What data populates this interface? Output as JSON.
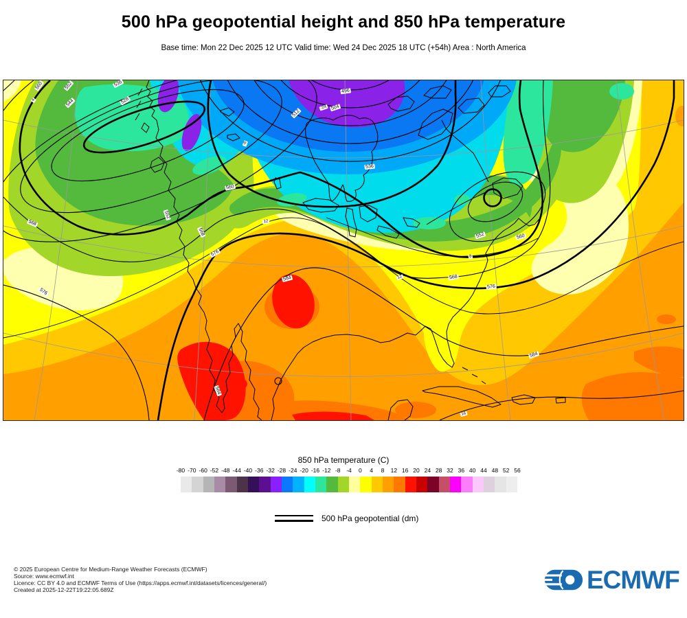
{
  "header": {
    "title": "500 hPa geopotential height and 850 hPa temperature",
    "subtitle": "Base time: Mon 22 Dec 2025 12 UTC Valid time: Wed 24 Dec 2025 18 UTC (+54h) Area : North America"
  },
  "colorbar": {
    "title": "850 hPa temperature (C)",
    "ticks": [
      "-80",
      "-70",
      "-60",
      "-52",
      "-48",
      "-44",
      "-40",
      "-36",
      "-32",
      "-28",
      "-24",
      "-20",
      "-16",
      "-12",
      "-8",
      "-4",
      "0",
      "4",
      "8",
      "12",
      "16",
      "20",
      "24",
      "28",
      "32",
      "36",
      "40",
      "44",
      "48",
      "52",
      "56"
    ],
    "colors": [
      "#e9e9e9",
      "#d4d4d4",
      "#b5b5b5",
      "#a78ba7",
      "#7c5a74",
      "#4d3349",
      "#331058",
      "#5c0f91",
      "#8a1fff",
      "#0a78ff",
      "#00b2ff",
      "#00ffff",
      "#2de69d",
      "#53ba3d",
      "#a2d628",
      "#ffff9e",
      "#ffff00",
      "#ffc800",
      "#ffa000",
      "#ff7800",
      "#ff1200",
      "#c80000",
      "#7c0228",
      "#c44f66",
      "#fb00fb",
      "#fb7dfb",
      "#fbc8fb",
      "#ddd1dd",
      "#e5e5e5",
      "#eeeeee"
    ]
  },
  "line_legend": {
    "label": "500 hPa geopotential (dm)"
  },
  "map": {
    "labels": [
      [
        "560",
        52,
        8,
        -55,
        "h"
      ],
      [
        "552",
        95,
        8,
        -50,
        "h"
      ],
      [
        "544",
        97,
        33,
        -45,
        "h"
      ],
      [
        "536",
        167,
        5,
        -28,
        "h"
      ],
      [
        "528",
        177,
        30,
        -33,
        "h"
      ],
      [
        "4",
        44,
        29,
        -55,
        "t"
      ],
      [
        "552",
        238,
        196,
        72,
        "h"
      ],
      [
        "568",
        288,
        221,
        64,
        "h"
      ],
      [
        "560",
        330,
        156,
        -12,
        "h"
      ],
      [
        "576",
        308,
        252,
        -30,
        "h"
      ],
      [
        "584",
        413,
        289,
        -14,
        "h"
      ],
      [
        "496",
        498,
        16,
        -8,
        "h"
      ],
      [
        "504",
        483,
        40,
        -18,
        "h"
      ],
      [
        "512",
        426,
        48,
        -45,
        "h"
      ],
      [
        "-24",
        466,
        40,
        -18,
        "t"
      ],
      [
        "536",
        533,
        126,
        -6,
        "h"
      ],
      [
        "-8",
        352,
        92,
        -70,
        "t"
      ],
      [
        "12",
        382,
        206,
        -4,
        "t"
      ],
      [
        "12",
        577,
        287,
        -20,
        "t"
      ],
      [
        "8",
        680,
        257,
        -12,
        "t"
      ],
      [
        "552",
        694,
        226,
        -18,
        "h"
      ],
      [
        "560",
        753,
        228,
        -15,
        "h"
      ],
      [
        "568",
        655,
        287,
        -10,
        "h"
      ],
      [
        "576",
        710,
        301,
        -6,
        "h"
      ],
      [
        "584",
        772,
        400,
        -18,
        "h"
      ],
      [
        "16",
        670,
        486,
        -15,
        "t"
      ],
      [
        "568",
        42,
        208,
        22,
        "h"
      ],
      [
        "576",
        58,
        308,
        35,
        "h"
      ],
      [
        "584",
        312,
        452,
        70,
        "h"
      ]
    ]
  },
  "footer": {
    "lines": [
      "© 2025 European Centre for Medium-Range Weather Forecasts (ECMWF)",
      "Source: www.ecmwf.int",
      "Licence: CC BY 4.0 and ECMWF Terms of Use (https://apps.ecmwf.int/datasets/licences/general/)",
      "Created at 2025-12-22T19:22:05.689Z"
    ]
  },
  "logo": {
    "text": "ECMWF",
    "color": "#1b6bb0"
  }
}
